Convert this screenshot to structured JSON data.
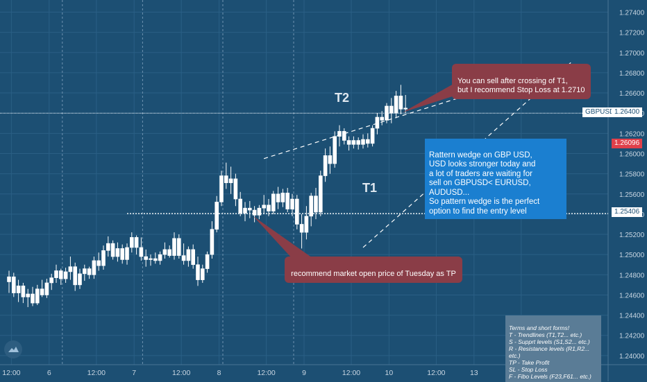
{
  "chart_data": {
    "type": "candlestick",
    "symbol": "GBPUSD",
    "ylim": [
      1.2391,
      1.2752
    ],
    "yticks": [
      "1.27400",
      "1.27200",
      "1.27000",
      "1.26800",
      "1.26600",
      "1.26400",
      "1.26200",
      "1.26000",
      "1.25800",
      "1.25600",
      "1.25400",
      "1.25200",
      "1.25000",
      "1.24800",
      "1.24600",
      "1.24400",
      "1.24200",
      "1.24000"
    ],
    "xticks": [
      "12:00",
      "6",
      "12:00",
      "7",
      "12:00",
      "8",
      "12:00",
      "9",
      "12:00",
      "10",
      "12:00",
      "13",
      "12:00"
    ],
    "xtick_positions": [
      0.5,
      8.5,
      18.5,
      26.5,
      36.5,
      44.5,
      54.5,
      62.5,
      72.5,
      80.5,
      90.5,
      98.5,
      108.5
    ],
    "session_separators": [
      11,
      28,
      45,
      60
    ],
    "candles": [
      [
        1.2473,
        1.2484,
        1.2462,
        1.2478
      ],
      [
        1.2478,
        1.2482,
        1.2458,
        1.2462
      ],
      [
        1.2462,
        1.2475,
        1.2453,
        1.2469
      ],
      [
        1.2469,
        1.2472,
        1.2452,
        1.2458
      ],
      [
        1.2458,
        1.2466,
        1.2448,
        1.2461
      ],
      [
        1.2461,
        1.2468,
        1.2449,
        1.2452
      ],
      [
        1.2452,
        1.247,
        1.245,
        1.2466
      ],
      [
        1.2466,
        1.2475,
        1.2458,
        1.246
      ],
      [
        1.246,
        1.2476,
        1.2457,
        1.2472
      ],
      [
        1.2472,
        1.2481,
        1.2465,
        1.2477
      ],
      [
        1.2477,
        1.249,
        1.2472,
        1.2484
      ],
      [
        1.2484,
        1.2486,
        1.247,
        1.2476
      ],
      [
        1.2476,
        1.2487,
        1.2472,
        1.2483
      ],
      [
        1.2483,
        1.2498,
        1.2475,
        1.2488
      ],
      [
        1.2488,
        1.2492,
        1.2464,
        1.247
      ],
      [
        1.247,
        1.2486,
        1.2466,
        1.2481
      ],
      [
        1.2481,
        1.249,
        1.2474,
        1.2486
      ],
      [
        1.2486,
        1.2488,
        1.2476,
        1.248
      ],
      [
        1.248,
        1.2498,
        1.2476,
        1.2494
      ],
      [
        1.2494,
        1.2502,
        1.2484,
        1.2489
      ],
      [
        1.2489,
        1.2509,
        1.2485,
        1.2504
      ],
      [
        1.2504,
        1.2518,
        1.2498,
        1.2511
      ],
      [
        1.2511,
        1.2514,
        1.2495,
        1.2498
      ],
      [
        1.2498,
        1.2512,
        1.2493,
        1.2506
      ],
      [
        1.2506,
        1.251,
        1.2491,
        1.2495
      ],
      [
        1.2495,
        1.2511,
        1.249,
        1.2507
      ],
      [
        1.2507,
        1.2522,
        1.2502,
        1.2517
      ],
      [
        1.2517,
        1.2519,
        1.25,
        1.2507
      ],
      [
        1.2507,
        1.2517,
        1.2494,
        1.2498
      ],
      [
        1.2498,
        1.2505,
        1.2488,
        1.2495
      ],
      [
        1.2495,
        1.25,
        1.2489,
        1.2496
      ],
      [
        1.2496,
        1.2502,
        1.2491,
        1.2494
      ],
      [
        1.2494,
        1.2503,
        1.249,
        1.25
      ],
      [
        1.25,
        1.2512,
        1.2496,
        1.2505
      ],
      [
        1.2505,
        1.2509,
        1.2497,
        1.2499
      ],
      [
        1.2499,
        1.2522,
        1.2495,
        1.2516
      ],
      [
        1.2516,
        1.252,
        1.2496,
        1.2499
      ],
      [
        1.2499,
        1.2511,
        1.249,
        1.2494
      ],
      [
        1.2494,
        1.2508,
        1.2488,
        1.2505
      ],
      [
        1.2505,
        1.251,
        1.2486,
        1.249
      ],
      [
        1.249,
        1.2498,
        1.2469,
        1.2475
      ],
      [
        1.2475,
        1.249,
        1.2472,
        1.2486
      ],
      [
        1.2486,
        1.2503,
        1.2482,
        1.25
      ],
      [
        1.25,
        1.2533,
        1.2496,
        1.2525
      ],
      [
        1.2525,
        1.2558,
        1.2522,
        1.2552
      ],
      [
        1.2552,
        1.2583,
        1.2548,
        1.2578
      ],
      [
        1.2578,
        1.2591,
        1.2565,
        1.2571
      ],
      [
        1.2571,
        1.2587,
        1.256,
        1.2575
      ],
      [
        1.2575,
        1.258,
        1.2548,
        1.2555
      ],
      [
        1.2555,
        1.2562,
        1.2538,
        1.2541
      ],
      [
        1.2541,
        1.2552,
        1.2533,
        1.2546
      ],
      [
        1.2546,
        1.2553,
        1.2536,
        1.2544
      ],
      [
        1.2544,
        1.2548,
        1.2532,
        1.2539
      ],
      [
        1.2539,
        1.2549,
        1.2535,
        1.2546
      ],
      [
        1.2546,
        1.2559,
        1.254,
        1.2549
      ],
      [
        1.2549,
        1.2555,
        1.2538,
        1.2543
      ],
      [
        1.2543,
        1.2563,
        1.254,
        1.256
      ],
      [
        1.256,
        1.2567,
        1.2545,
        1.2552
      ],
      [
        1.2552,
        1.2565,
        1.2547,
        1.2561
      ],
      [
        1.2561,
        1.2566,
        1.2542,
        1.2545
      ],
      [
        1.2545,
        1.256,
        1.2538,
        1.2555
      ],
      [
        1.2555,
        1.2559,
        1.2525,
        1.253
      ],
      [
        1.253,
        1.254,
        1.2506,
        1.2522
      ],
      [
        1.2522,
        1.2548,
        1.2515,
        1.2538
      ],
      [
        1.2538,
        1.2561,
        1.2528,
        1.2558
      ],
      [
        1.2558,
        1.2566,
        1.2535,
        1.2542
      ],
      [
        1.2542,
        1.2583,
        1.2538,
        1.2578
      ],
      [
        1.2578,
        1.2605,
        1.2572,
        1.2598
      ],
      [
        1.2598,
        1.2607,
        1.258,
        1.259
      ],
      [
        1.259,
        1.2622,
        1.2586,
        1.2617
      ],
      [
        1.2617,
        1.2628,
        1.2607,
        1.2622
      ],
      [
        1.2622,
        1.2625,
        1.2609,
        1.2613
      ],
      [
        1.2613,
        1.2617,
        1.2603,
        1.2609
      ],
      [
        1.2609,
        1.2617,
        1.2605,
        1.2613
      ],
      [
        1.2613,
        1.2616,
        1.2604,
        1.2609
      ],
      [
        1.2609,
        1.2619,
        1.2605,
        1.2614
      ],
      [
        1.2614,
        1.262,
        1.2606,
        1.261
      ],
      [
        1.261,
        1.2628,
        1.2607,
        1.2625
      ],
      [
        1.2625,
        1.264,
        1.2619,
        1.2636
      ],
      [
        1.2636,
        1.2642,
        1.2628,
        1.2633
      ],
      [
        1.2633,
        1.265,
        1.263,
        1.2647
      ],
      [
        1.2647,
        1.2655,
        1.263,
        1.264
      ],
      [
        1.264,
        1.2662,
        1.2635,
        1.2657
      ],
      [
        1.2657,
        1.2668,
        1.2639,
        1.2644
      ],
      [
        1.2644,
        1.2658,
        1.264,
        1.2645
      ]
    ],
    "colors": {
      "up": "#ffffff",
      "down": "#ffffff",
      "background": "#1c4f73",
      "grid": "#2a5f85"
    },
    "price_labels": [
      {
        "label": "GBPUSD",
        "value": "1.26400",
        "y": 1.264,
        "style": "white"
      },
      {
        "value": "1.26096",
        "y": 1.26096,
        "style": "red"
      },
      {
        "value": "1.25406",
        "y": 1.25406,
        "style": "white"
      }
    ],
    "horizontal_lines": [
      1.264,
      1.25406
    ],
    "trendlines": [
      {
        "name": "T2",
        "from": [
          54,
          1.2595
        ],
        "to": [
          118,
          1.2688
        ]
      },
      {
        "name": "T1",
        "from": [
          75,
          1.2507
        ],
        "to": [
          119,
          1.269
        ]
      }
    ],
    "line_labels": [
      "T2",
      "T1"
    ],
    "annotations": {
      "sell_note": "You can sell after crossing of T1,\nbut I recommend Stop Loss at 1.2710",
      "wedge_note": "Rattern wedge on GBP USD,\nUSD looks stronger today and\na lot of traders are waiting for\nsell on GBPUSD< EURUSD, AUDUSD...\nSo pattern wedge is the perfect\noption to find the entry level",
      "tp_note": "recommend market open price of Tuesday as TP",
      "terms": "Terms and short forms!\nT - Trendlines (T1,T2... etc.)\nS - Supprt levels (S1,S2... etc.)\nR - Resistance levels (R1,R2... etc.)\nTP - Take Profit\nSL - Stop Loss\nF - Fibo Levels  (F23,F61... etc.)"
    }
  }
}
